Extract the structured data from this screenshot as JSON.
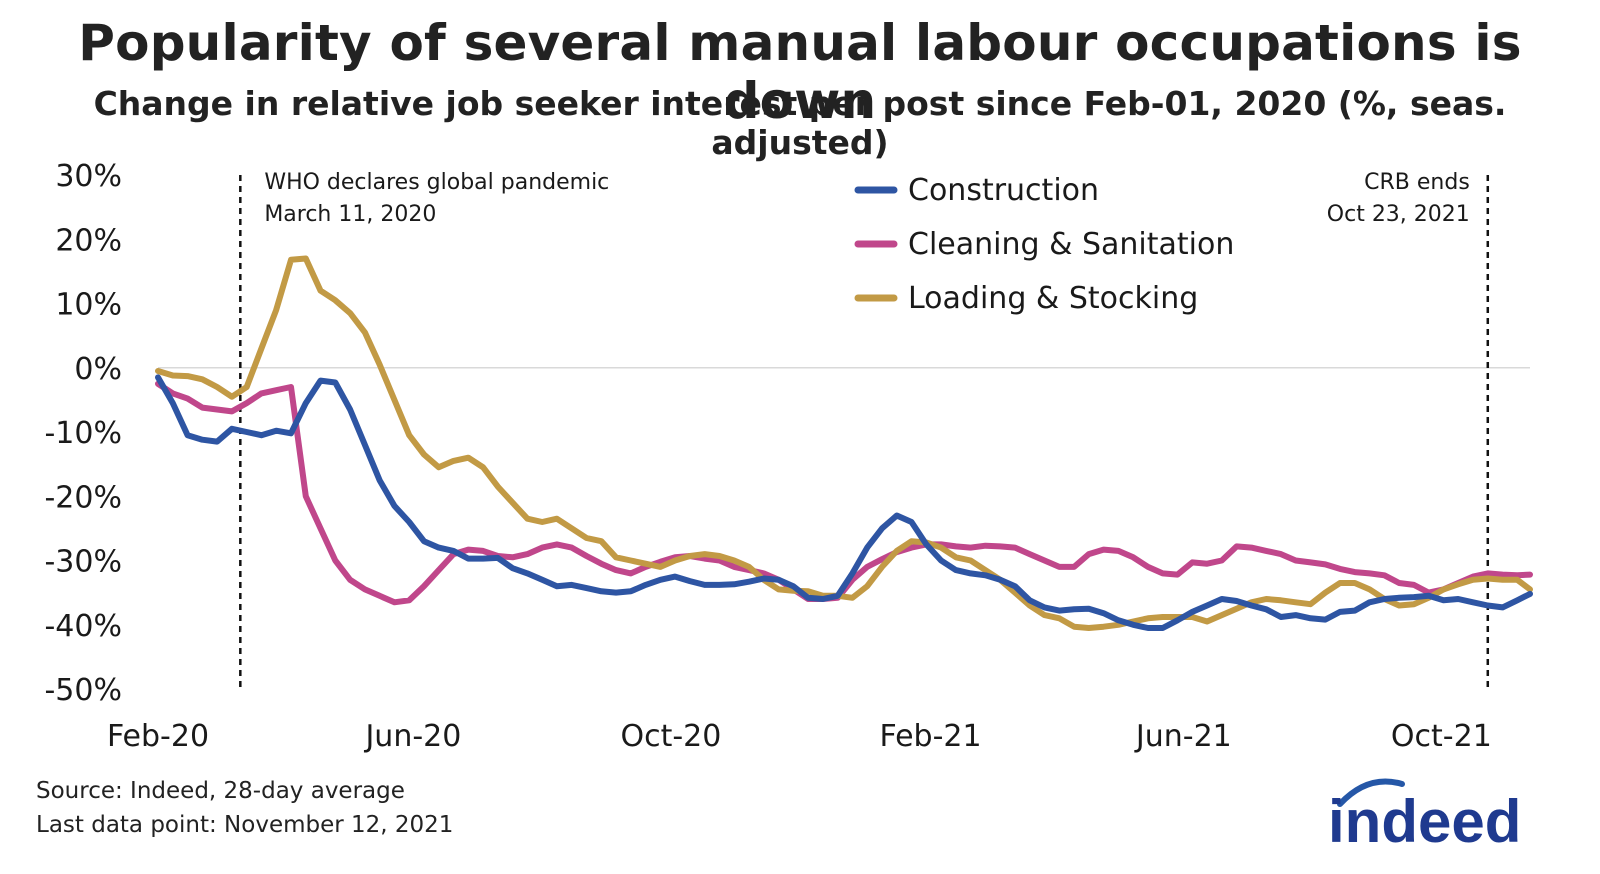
{
  "header": {
    "title": "Popularity of several manual labour occupations is down",
    "subtitle": "Change in relative job seeker interest per post since Feb-01, 2020 (%, seas. adjusted)"
  },
  "footer": {
    "source": "Source: Indeed, 28-day average",
    "last_point": "Last data point: November 12, 2021"
  },
  "logo": {
    "text": "indeed",
    "color": "#1f3a8f",
    "accent": "#2557a7"
  },
  "chart_data": {
    "type": "line",
    "ylim": [
      -50,
      30
    ],
    "yticks": [
      30,
      20,
      10,
      0,
      -10,
      -20,
      -30,
      -40,
      -50
    ],
    "ytick_labels": [
      "30%",
      "20%",
      "10%",
      "0%",
      "-10%",
      "-20%",
      "-30%",
      "-40%",
      "-50%"
    ],
    "xlim": [
      "2020-02-01",
      "2021-11-12"
    ],
    "xticks": [
      {
        "date": "2020-02-01",
        "label": "Feb-20"
      },
      {
        "date": "2020-06-01",
        "label": "Jun-20"
      },
      {
        "date": "2020-10-01",
        "label": "Oct-20"
      },
      {
        "date": "2021-02-01",
        "label": "Feb-21"
      },
      {
        "date": "2021-06-01",
        "label": "Jun-21"
      },
      {
        "date": "2021-10-01",
        "label": "Oct-21"
      }
    ],
    "zero_line": true,
    "grid": false,
    "legend_position": "top-center",
    "annotations": [
      {
        "date": "2020-03-11",
        "lines": [
          "WHO declares global pandemic",
          "March 11, 2020"
        ],
        "side": "right"
      },
      {
        "date": "2021-10-23",
        "lines": [
          "CRB ends",
          "Oct 23, 2021"
        ],
        "side": "left"
      }
    ],
    "series": [
      {
        "name": "Construction",
        "color": "#2e55a3",
        "dates": [
          "2020-02-01",
          "2020-02-08",
          "2020-02-15",
          "2020-02-22",
          "2020-02-29",
          "2020-03-07",
          "2020-03-14",
          "2020-03-21",
          "2020-03-28",
          "2020-04-04",
          "2020-04-11",
          "2020-04-18",
          "2020-04-25",
          "2020-05-02",
          "2020-05-09",
          "2020-05-16",
          "2020-05-23",
          "2020-05-30",
          "2020-06-06",
          "2020-06-13",
          "2020-06-20",
          "2020-06-27",
          "2020-07-04",
          "2020-07-11",
          "2020-07-18",
          "2020-07-25",
          "2020-08-01",
          "2020-08-08",
          "2020-08-15",
          "2020-08-22",
          "2020-08-29",
          "2020-09-05",
          "2020-09-12",
          "2020-09-19",
          "2020-09-26",
          "2020-10-03",
          "2020-10-10",
          "2020-10-17",
          "2020-10-24",
          "2020-10-31",
          "2020-11-07",
          "2020-11-14",
          "2020-11-21",
          "2020-11-28",
          "2020-12-05",
          "2020-12-12",
          "2020-12-19",
          "2020-12-26",
          "2021-01-02",
          "2021-01-09",
          "2021-01-16",
          "2021-01-23",
          "2021-01-30",
          "2021-02-06",
          "2021-02-13",
          "2021-02-20",
          "2021-02-27",
          "2021-03-06",
          "2021-03-13",
          "2021-03-20",
          "2021-03-27",
          "2021-04-03",
          "2021-04-10",
          "2021-04-17",
          "2021-04-24",
          "2021-05-01",
          "2021-05-08",
          "2021-05-15",
          "2021-05-22",
          "2021-05-29",
          "2021-06-05",
          "2021-06-12",
          "2021-06-19",
          "2021-06-26",
          "2021-07-03",
          "2021-07-10",
          "2021-07-17",
          "2021-07-24",
          "2021-07-31",
          "2021-08-07",
          "2021-08-14",
          "2021-08-21",
          "2021-08-28",
          "2021-09-04",
          "2021-09-11",
          "2021-09-18",
          "2021-09-25",
          "2021-10-02",
          "2021-10-09",
          "2021-10-16",
          "2021-10-23",
          "2021-10-30",
          "2021-11-06",
          "2021-11-12"
        ],
        "values": [
          -1.5,
          -5.5,
          -10.5,
          -11.2,
          -11.5,
          -9.5,
          -10,
          -10.5,
          -9.8,
          -10.2,
          -5.5,
          -2,
          -2.3,
          -6.5,
          -12,
          -17.5,
          -21.5,
          -24,
          -27,
          -28,
          -28.5,
          -29.7,
          -29.7,
          -29.6,
          -31.2,
          -32,
          -33,
          -34,
          -33.8,
          -34.3,
          -34.8,
          -35,
          -34.8,
          -33.8,
          -33,
          -32.5,
          -33.2,
          -33.8,
          -33.8,
          -33.7,
          -33.3,
          -32.8,
          -33,
          -34,
          -35.8,
          -36,
          -35.5,
          -32,
          -28,
          -25,
          -23,
          -24,
          -27.5,
          -30,
          -31.5,
          -32,
          -32.3,
          -33,
          -34,
          -36.2,
          -37.3,
          -37.8,
          -37.6,
          -37.5,
          -38.2,
          -39.3,
          -40,
          -40.5,
          -40.5,
          -39.3,
          -38,
          -37,
          -36,
          -36.3,
          -37,
          -37.6,
          -38.8,
          -38.5,
          -39,
          -39.2,
          -38,
          -37.8,
          -36.5,
          -36,
          -35.8,
          -35.7,
          -35.5,
          -36.2,
          -36,
          -36.5,
          -37,
          -37.3,
          -36.2,
          -35.2
        ]
      },
      {
        "name": "Cleaning & Sanitation",
        "color": "#c0478b",
        "dates": [
          "2020-02-01",
          "2020-02-08",
          "2020-02-15",
          "2020-02-22",
          "2020-02-29",
          "2020-03-07",
          "2020-03-14",
          "2020-03-21",
          "2020-03-28",
          "2020-04-04",
          "2020-04-11",
          "2020-04-18",
          "2020-04-25",
          "2020-05-02",
          "2020-05-09",
          "2020-05-16",
          "2020-05-23",
          "2020-05-30",
          "2020-06-06",
          "2020-06-13",
          "2020-06-20",
          "2020-06-27",
          "2020-07-04",
          "2020-07-11",
          "2020-07-18",
          "2020-07-25",
          "2020-08-01",
          "2020-08-08",
          "2020-08-15",
          "2020-08-22",
          "2020-08-29",
          "2020-09-05",
          "2020-09-12",
          "2020-09-19",
          "2020-09-26",
          "2020-10-03",
          "2020-10-10",
          "2020-10-17",
          "2020-10-24",
          "2020-10-31",
          "2020-11-07",
          "2020-11-14",
          "2020-11-21",
          "2020-11-28",
          "2020-12-05",
          "2020-12-12",
          "2020-12-19",
          "2020-12-26",
          "2021-01-02",
          "2021-01-09",
          "2021-01-16",
          "2021-01-23",
          "2021-01-30",
          "2021-02-06",
          "2021-02-13",
          "2021-02-20",
          "2021-02-27",
          "2021-03-06",
          "2021-03-13",
          "2021-03-20",
          "2021-03-27",
          "2021-04-03",
          "2021-04-10",
          "2021-04-17",
          "2021-04-24",
          "2021-05-01",
          "2021-05-08",
          "2021-05-15",
          "2021-05-22",
          "2021-05-29",
          "2021-06-05",
          "2021-06-12",
          "2021-06-19",
          "2021-06-26",
          "2021-07-03",
          "2021-07-10",
          "2021-07-17",
          "2021-07-24",
          "2021-07-31",
          "2021-08-07",
          "2021-08-14",
          "2021-08-21",
          "2021-08-28",
          "2021-09-04",
          "2021-09-11",
          "2021-09-18",
          "2021-09-25",
          "2021-10-02",
          "2021-10-09",
          "2021-10-16",
          "2021-10-23",
          "2021-10-30",
          "2021-11-06",
          "2021-11-12"
        ],
        "values": [
          -2.5,
          -4,
          -4.8,
          -6.2,
          -6.5,
          -6.8,
          -5.5,
          -4,
          -3.5,
          -3,
          -20,
          -25,
          -30,
          -33,
          -34.5,
          -35.5,
          -36.5,
          -36.2,
          -34,
          -31.5,
          -29,
          -28.3,
          -28.5,
          -29.3,
          -29.5,
          -29,
          -28,
          -27.5,
          -28,
          -29.3,
          -30.5,
          -31.5,
          -32,
          -31,
          -30.2,
          -29.5,
          -29.3,
          -29.7,
          -30,
          -31,
          -31.5,
          -32,
          -33,
          -34.5,
          -36,
          -36,
          -35.8,
          -33,
          -31,
          -29.8,
          -28.7,
          -28,
          -27.5,
          -27.5,
          -27.8,
          -28,
          -27.7,
          -27.8,
          -28,
          -29,
          -30,
          -31,
          -31,
          -29,
          -28.3,
          -28.5,
          -29.5,
          -31,
          -32,
          -32.2,
          -30.3,
          -30.5,
          -30,
          -27.8,
          -28,
          -28.5,
          -29,
          -30,
          -30.3,
          -30.6,
          -31.3,
          -31.8,
          -32,
          -32.3,
          -33.5,
          -33.8,
          -35,
          -34.5,
          -33.5,
          -32.5,
          -32,
          -32.2,
          -32.3,
          -32.2
        ]
      },
      {
        "name": "Loading & Stocking",
        "color": "#c29a45",
        "dates": [
          "2020-02-01",
          "2020-02-08",
          "2020-02-15",
          "2020-02-22",
          "2020-02-29",
          "2020-03-07",
          "2020-03-14",
          "2020-03-21",
          "2020-03-28",
          "2020-04-04",
          "2020-04-11",
          "2020-04-18",
          "2020-04-25",
          "2020-05-02",
          "2020-05-09",
          "2020-05-16",
          "2020-05-23",
          "2020-05-30",
          "2020-06-06",
          "2020-06-13",
          "2020-06-20",
          "2020-06-27",
          "2020-07-04",
          "2020-07-11",
          "2020-07-18",
          "2020-07-25",
          "2020-08-01",
          "2020-08-08",
          "2020-08-15",
          "2020-08-22",
          "2020-08-29",
          "2020-09-05",
          "2020-09-12",
          "2020-09-19",
          "2020-09-26",
          "2020-10-03",
          "2020-10-10",
          "2020-10-17",
          "2020-10-24",
          "2020-10-31",
          "2020-11-07",
          "2020-11-14",
          "2020-11-21",
          "2020-11-28",
          "2020-12-05",
          "2020-12-12",
          "2020-12-19",
          "2020-12-26",
          "2021-01-02",
          "2021-01-09",
          "2021-01-16",
          "2021-01-23",
          "2021-01-30",
          "2021-02-06",
          "2021-02-13",
          "2021-02-20",
          "2021-02-27",
          "2021-03-06",
          "2021-03-13",
          "2021-03-20",
          "2021-03-27",
          "2021-04-03",
          "2021-04-10",
          "2021-04-17",
          "2021-04-24",
          "2021-05-01",
          "2021-05-08",
          "2021-05-15",
          "2021-05-22",
          "2021-05-29",
          "2021-06-05",
          "2021-06-12",
          "2021-06-19",
          "2021-06-26",
          "2021-07-03",
          "2021-07-10",
          "2021-07-17",
          "2021-07-24",
          "2021-07-31",
          "2021-08-07",
          "2021-08-14",
          "2021-08-21",
          "2021-08-28",
          "2021-09-04",
          "2021-09-11",
          "2021-09-18",
          "2021-09-25",
          "2021-10-02",
          "2021-10-09",
          "2021-10-16",
          "2021-10-23",
          "2021-10-30",
          "2021-11-06",
          "2021-11-12"
        ],
        "values": [
          -0.5,
          -1.2,
          -1.3,
          -1.8,
          -3,
          -4.5,
          -3,
          3,
          9,
          16.8,
          17,
          12,
          10.5,
          8.5,
          5.5,
          0.5,
          -5,
          -10.5,
          -13.5,
          -15.5,
          -14.5,
          -14,
          -15.5,
          -18.5,
          -21,
          -23.5,
          -24,
          -23.5,
          -25,
          -26.5,
          -27,
          -29.5,
          -30,
          -30.5,
          -31,
          -30,
          -29.3,
          -29,
          -29.3,
          -30,
          -31,
          -33,
          -34.5,
          -34.7,
          -34.8,
          -35.5,
          -35.5,
          -35.8,
          -34,
          -31,
          -28.5,
          -27,
          -27.2,
          -28,
          -29.5,
          -30,
          -31.5,
          -33,
          -35,
          -37,
          -38.5,
          -39,
          -40.3,
          -40.5,
          -40.3,
          -40,
          -39.5,
          -39,
          -38.8,
          -38.8,
          -38.8,
          -39.5,
          -38.5,
          -37.5,
          -36.5,
          -36,
          -36.2,
          -36.5,
          -36.8,
          -35,
          -33.5,
          -33.5,
          -34.5,
          -36,
          -37,
          -36.8,
          -35.8,
          -34.5,
          -33.7,
          -33,
          -32.8,
          -33,
          -33,
          -34.5
        ]
      }
    ]
  }
}
